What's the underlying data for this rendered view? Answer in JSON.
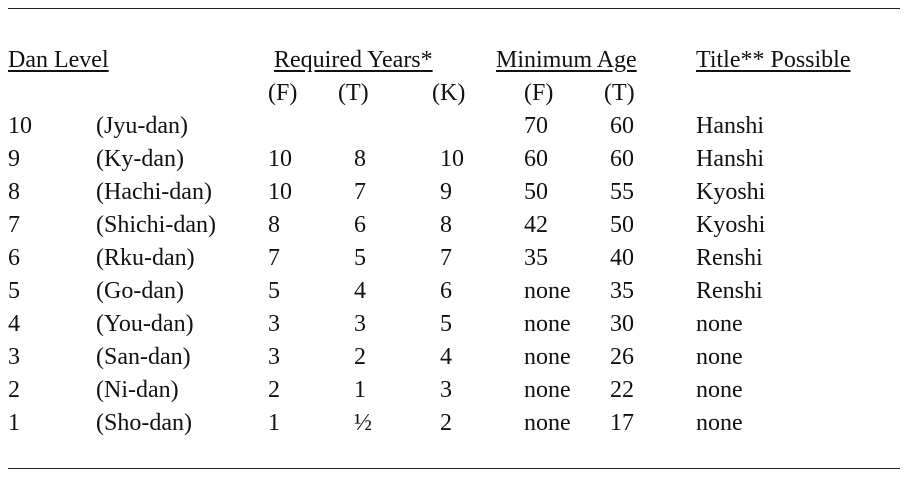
{
  "headers": {
    "dan_level": "Dan Level",
    "required_years": "Required Years*",
    "minimum_age": "Minimum Age",
    "title_possible": "Title** Possible"
  },
  "subheaders": {
    "req_f": "(F)",
    "req_t": "(T)",
    "req_k": "(K)",
    "age_f": "(F)",
    "age_t": "(T)"
  },
  "rows": [
    {
      "level": "10",
      "name": "(Jyu-dan)",
      "req_f": "",
      "req_t": "",
      "req_k": "",
      "age_f": "70",
      "age_t": "60",
      "title": "Hanshi"
    },
    {
      "level": "9",
      "name": "(Ky-dan)",
      "req_f": "10",
      "req_t": "8",
      "req_k": "10",
      "age_f": "60",
      "age_t": "60",
      "title": "Hanshi"
    },
    {
      "level": "8",
      "name": "(Hachi-dan)",
      "req_f": "10",
      "req_t": "7",
      "req_k": "9",
      "age_f": "50",
      "age_t": "55",
      "title": "Kyoshi"
    },
    {
      "level": "7",
      "name": "(Shichi-dan)",
      "req_f": "8",
      "req_t": "6",
      "req_k": "8",
      "age_f": "42",
      "age_t": "50",
      "title": "Kyoshi"
    },
    {
      "level": "6",
      "name": "(Rku-dan)",
      "req_f": "7",
      "req_t": "5",
      "req_k": "7",
      "age_f": "35",
      "age_t": "40",
      "title": "Renshi"
    },
    {
      "level": "5",
      "name": "(Go-dan)",
      "req_f": "5",
      "req_t": "4",
      "req_k": "6",
      "age_f": "none",
      "age_t": "35",
      "title": "Renshi"
    },
    {
      "level": "4",
      "name": "(You-dan)",
      "req_f": "3",
      "req_t": "3",
      "req_k": "5",
      "age_f": "none",
      "age_t": "30",
      "title": "none"
    },
    {
      "level": "3",
      "name": "(San-dan)",
      "req_f": "3",
      "req_t": "2",
      "req_k": "4",
      "age_f": "none",
      "age_t": "26",
      "title": "none"
    },
    {
      "level": "2",
      "name": "(Ni-dan)",
      "req_f": "2",
      "req_t": "1",
      "req_k": "3",
      "age_f": "none",
      "age_t": "22",
      "title": "none"
    },
    {
      "level": "1",
      "name": "(Sho-dan)",
      "req_f": "1",
      "req_t": "½",
      "req_k": "2",
      "age_f": "none",
      "age_t": "17",
      "title": "none"
    }
  ]
}
